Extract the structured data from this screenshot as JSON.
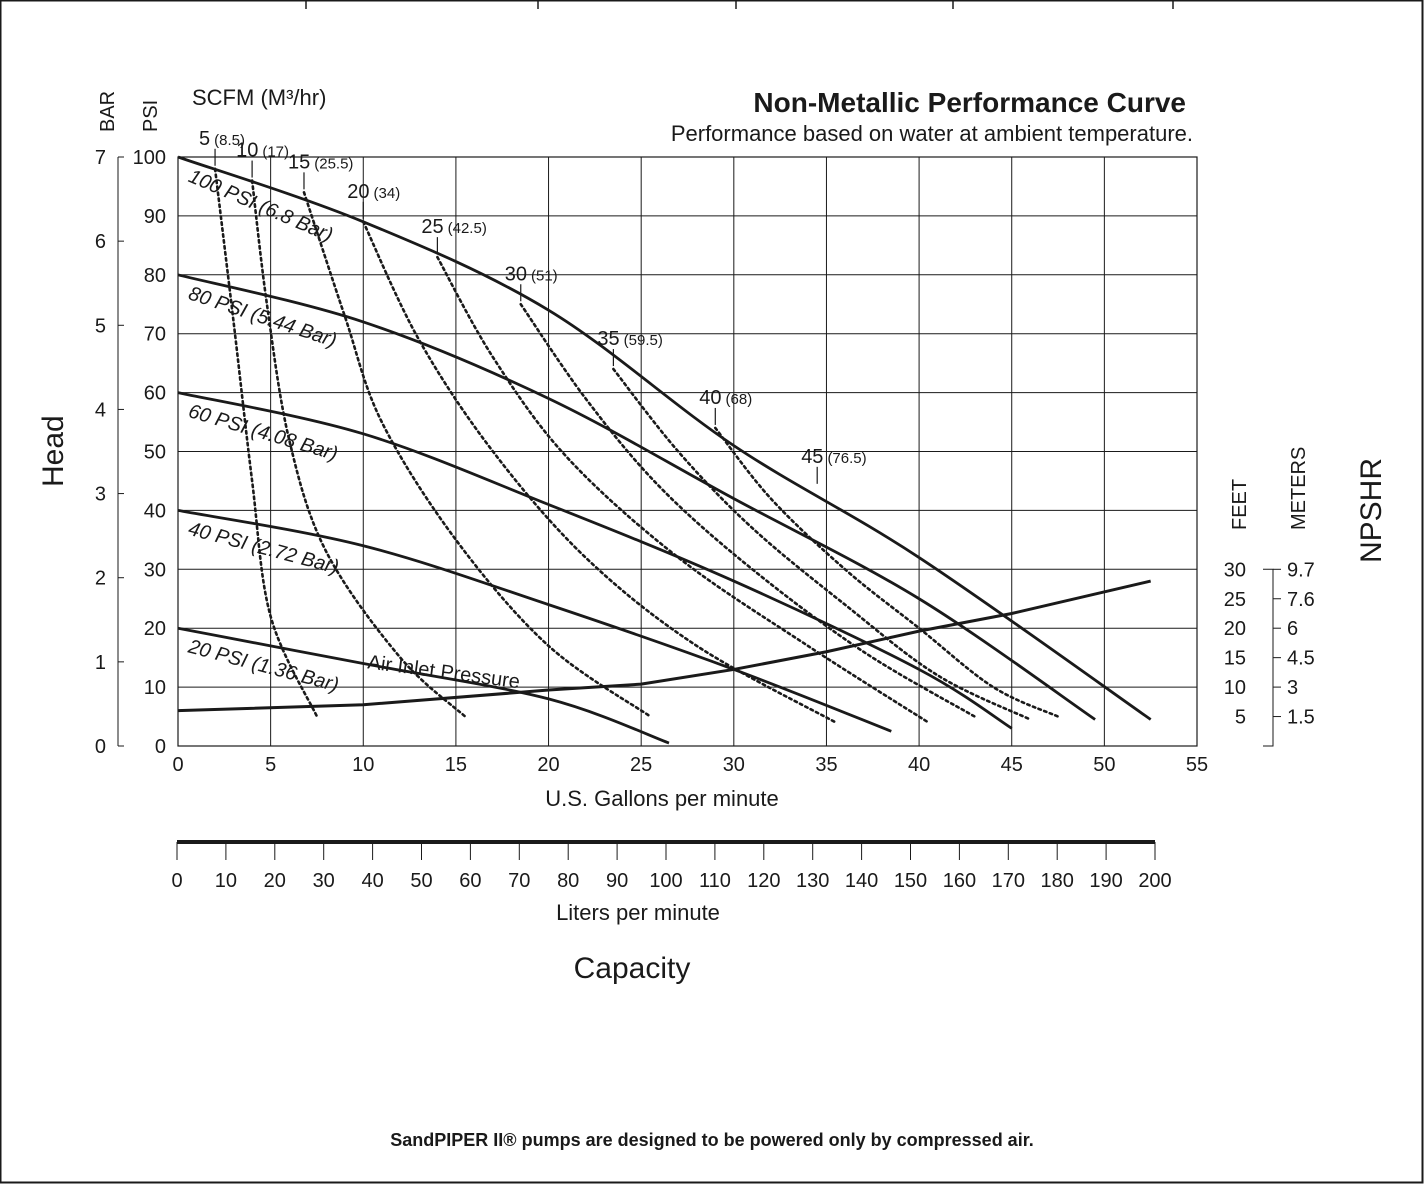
{
  "chart_data": {
    "type": "line",
    "title": "Non-Metallic Performance Curve",
    "subtitle": "Performance based on water at ambient temperature.",
    "xlabel": "U.S. Gallons per minute",
    "xlim": [
      0,
      55
    ],
    "x_ticks": [
      "0",
      "5",
      "10",
      "15",
      "20",
      "25",
      "30",
      "35",
      "40",
      "45",
      "50",
      "55"
    ],
    "ylim": [
      0,
      100
    ],
    "ylabel": "Head",
    "psi_label": "PSI",
    "psi_ticks": [
      "0",
      "10",
      "20",
      "30",
      "40",
      "50",
      "60",
      "70",
      "80",
      "90",
      "100"
    ],
    "bar_label": "BAR",
    "bar_ticks": [
      {
        "label": "0",
        "value": 0
      },
      {
        "label": "1",
        "value": 1
      },
      {
        "label": "2",
        "value": 2
      },
      {
        "label": "3",
        "value": 3
      },
      {
        "label": "4",
        "value": 4
      },
      {
        "label": "5",
        "value": 5
      },
      {
        "label": "6",
        "value": 6
      },
      {
        "label": "7",
        "value": 7
      }
    ],
    "series": [
      {
        "name": "100 PSI (6.8 Bar)",
        "x": [
          0,
          10,
          20,
          30,
          40,
          52.5
        ],
        "y": [
          100,
          89,
          74,
          51,
          32,
          4.5
        ]
      },
      {
        "name": "80 PSI (5.44 Bar)",
        "x": [
          0,
          10,
          20,
          30,
          40,
          49.5
        ],
        "y": [
          80,
          72,
          59,
          42,
          25,
          4.5
        ]
      },
      {
        "name": "60 PSI (4.08 Bar)",
        "x": [
          0,
          10,
          20,
          30,
          40,
          45
        ],
        "y": [
          60,
          53,
          41,
          28,
          13,
          3
        ]
      },
      {
        "name": "40 PSI (2.72 Bar)",
        "x": [
          0,
          10,
          20,
          30,
          38.5
        ],
        "y": [
          40,
          34,
          24,
          13,
          2.5
        ]
      },
      {
        "name": "20 PSI (1.36 Bar)",
        "x": [
          0,
          10,
          20,
          26.5
        ],
        "y": [
          20,
          14,
          8,
          0.5
        ]
      }
    ],
    "air_inlet_label": "Air Inlet Pressure",
    "scfm_label": "SCFM (M³/hr)",
    "scfm_curves": [
      {
        "label": "5",
        "metric": "(8.5)",
        "x": [
          2,
          3,
          4,
          5,
          7.5
        ],
        "y": [
          98,
          72,
          45,
          22,
          5
        ]
      },
      {
        "label": "10",
        "metric": "(17)",
        "x": [
          4,
          4.8,
          6,
          8,
          12,
          15.5
        ],
        "y": [
          96,
          75,
          52,
          33,
          15,
          5
        ]
      },
      {
        "label": "15",
        "metric": "(25.5)",
        "x": [
          6.8,
          9,
          11,
          15,
          20,
          25.5
        ],
        "y": [
          94,
          73,
          55,
          35,
          17,
          5
        ]
      },
      {
        "label": "20",
        "metric": "(34)",
        "x": [
          10,
          13,
          17,
          22,
          28,
          35.5
        ],
        "y": [
          89,
          69,
          50,
          32,
          17,
          4
        ]
      },
      {
        "label": "25",
        "metric": "(42.5)",
        "x": [
          14,
          17,
          21,
          27,
          34,
          40.5
        ],
        "y": [
          83,
          66,
          49,
          32,
          17,
          4
        ]
      },
      {
        "label": "30",
        "metric": "(51)",
        "x": [
          18.5,
          22,
          26,
          31,
          37,
          43
        ],
        "y": [
          75,
          59,
          44,
          30,
          16,
          5
        ]
      },
      {
        "label": "35",
        "metric": "(59.5)",
        "x": [
          23.5,
          27,
          31,
          36,
          41,
          46
        ],
        "y": [
          64,
          50,
          37,
          24,
          12,
          4.5
        ]
      },
      {
        "label": "40",
        "metric": "(68)",
        "x": [
          29,
          32,
          36,
          40,
          44,
          47.5
        ],
        "y": [
          54,
          42,
          30,
          20,
          10,
          5
        ]
      },
      {
        "label": "45",
        "metric": "(76.5)",
        "x": [
          34.5
        ],
        "y": [
          44
        ]
      }
    ],
    "npshr": {
      "label": "NPSHR",
      "feet_label": "FEET",
      "meters_label": "METERS",
      "feet_ticks": [
        "5",
        "10",
        "15",
        "20",
        "25",
        "30"
      ],
      "meters_ticks": [
        "1.5",
        "3",
        "4.5",
        "6",
        "7.6",
        "9.7"
      ],
      "curve": {
        "x": [
          0,
          10,
          20,
          25,
          30,
          35,
          40,
          45,
          52.5
        ],
        "y": [
          6,
          7,
          9.5,
          10.5,
          13,
          16,
          19.5,
          22.5,
          28
        ]
      }
    },
    "lpm_label": "Liters per minute",
    "lpm_ticks": [
      "0",
      "10",
      "20",
      "30",
      "40",
      "50",
      "60",
      "70",
      "80",
      "90",
      "100",
      "110",
      "120",
      "130",
      "140",
      "150",
      "160",
      "170",
      "180",
      "190",
      "200"
    ],
    "capacity_label": "Capacity"
  },
  "footer_note": "SandPIPER II® pumps are designed to be powered only by compressed air."
}
